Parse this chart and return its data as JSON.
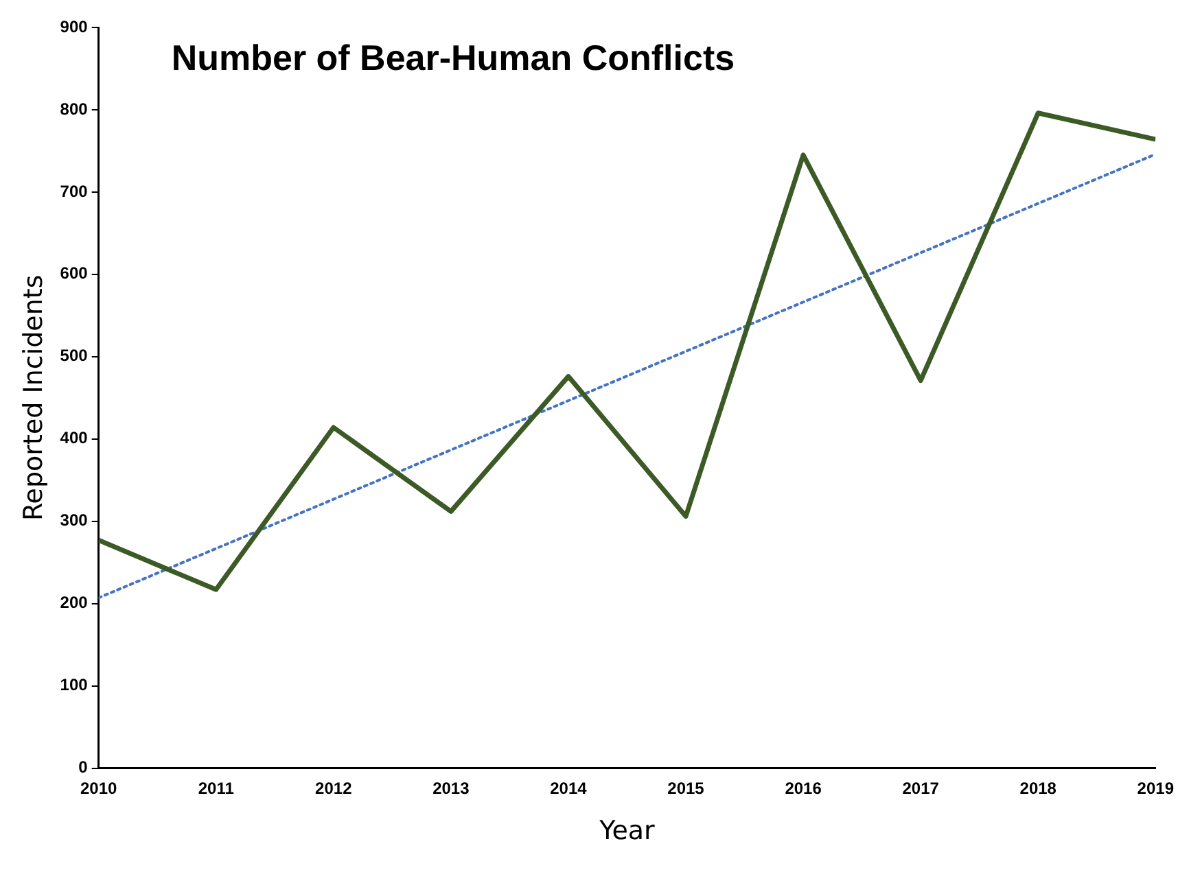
{
  "chart_data": {
    "type": "line",
    "title": "Number of Bear-Human Conflicts",
    "xlabel": "Year",
    "ylabel": "Reported Incidents",
    "x": [
      2010,
      2011,
      2012,
      2013,
      2014,
      2015,
      2016,
      2017,
      2018,
      2019
    ],
    "series": [
      {
        "color": "#3b5a25",
        "values": [
          277,
          217,
          414,
          312,
          476,
          306,
          745,
          471,
          796,
          764
        ]
      },
      {
        "type": "line",
        "x": [
          2010,
          2019
        ],
        "values": [
          207,
          746
        ],
        "color": "#4472c4",
        "line_style": "dotted"
      }
    ],
    "xlim": [
      2010,
      2019
    ],
    "xticks": [
      2010,
      2011,
      2012,
      2013,
      2014,
      2015,
      2016,
      2017,
      2018,
      2019
    ],
    "ylim": [
      0,
      900
    ],
    "yticks": [
      0,
      100,
      200,
      300,
      400,
      500,
      600,
      700,
      800,
      900
    ],
    "grid": false,
    "legend": false,
    "marker": "none",
    "line_style": "solid"
  }
}
